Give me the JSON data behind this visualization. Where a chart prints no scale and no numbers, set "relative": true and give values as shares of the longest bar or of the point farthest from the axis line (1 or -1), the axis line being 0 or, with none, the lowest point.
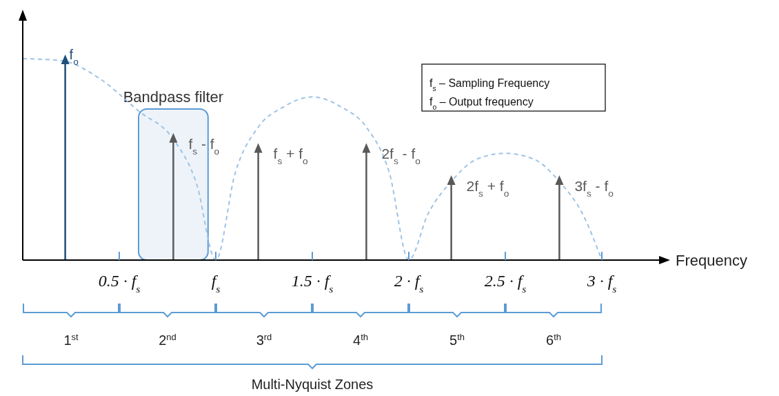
{
  "chart_data": {
    "type": "lollipop",
    "relative": true,
    "xlabel": "Frequency",
    "xlim": [
      0,
      3.3
    ],
    "xticks": [
      {
        "value": 0.5,
        "label": "0.5 · f$_{s}$"
      },
      {
        "value": 1,
        "label": "f$_{s}$"
      },
      {
        "value": 1.5,
        "label": "1.5 · f$_{s}$"
      },
      {
        "value": 2,
        "label": "2 · f$_{s}$"
      },
      {
        "value": 2.5,
        "label": "2.5 · f$_{s}$"
      },
      {
        "value": 3,
        "label": "3 · f$_{s}$"
      }
    ],
    "series": [
      {
        "type": "line",
        "color": "#9dc3e6",
        "line_style": "dashed",
        "x": [
          0,
          0.2,
          0.4,
          0.6,
          0.78,
          0.9,
          1,
          1.1,
          1.22,
          1.35,
          1.5,
          1.65,
          1.78,
          1.9,
          2,
          2.1,
          2.22,
          2.35,
          2.5,
          2.65,
          2.78,
          2.9,
          3
        ],
        "values": [
          1,
          0.99,
          0.9,
          0.74,
          0.6,
          0.38,
          0,
          0.43,
          0.66,
          0.76,
          0.81,
          0.76,
          0.66,
          0.43,
          0,
          0.23,
          0.39,
          0.5,
          0.53,
          0.5,
          0.39,
          0.23,
          0
        ]
      },
      {
        "marker": "triangle",
        "x": [
          0.22,
          0.78,
          1.22,
          1.78,
          2.22,
          2.78
        ],
        "values": [
          0.99,
          0.6,
          0.55,
          0.55,
          0.39,
          0.39
        ],
        "colors": [
          "#1f4e79",
          "#595959",
          "#595959",
          "#595959",
          "#595959",
          "#595959"
        ]
      }
    ],
    "bands": [
      {
        "axis": "x",
        "from": 0.6,
        "to": 0.96,
        "label": "Bandpass filter",
        "color": "#5b9bd5"
      }
    ],
    "annotations": [
      {
        "text": "f$_{o}$",
        "x": 0.22,
        "y": 0.99
      },
      {
        "text": "f$_{s}$ - f$_{o}$",
        "x": 0.78,
        "y": 0.6
      },
      {
        "text": "f$_{s}$ + f$_{o}$",
        "x": 1.22,
        "y": 0.55
      },
      {
        "text": "2f$_{s}$ - f$_{o}$",
        "x": 1.78,
        "y": 0.55
      },
      {
        "text": "2f$_{s}$ + f$_{o}$",
        "x": 2.22,
        "y": 0.39
      },
      {
        "text": "3f$_{s}$ - f$_{o}$",
        "x": 2.78,
        "y": 0.39
      },
      "f$_{s}$ – Sampling Frequency",
      "f$_{o}$ – Output frequency",
      "1$^{st}$",
      "2$^{nd}$",
      "3$^{rd}$",
      "4$^{th}$",
      "5$^{th}$",
      "6$^{th}$",
      "Multi-Nyquist Zones"
    ]
  }
}
